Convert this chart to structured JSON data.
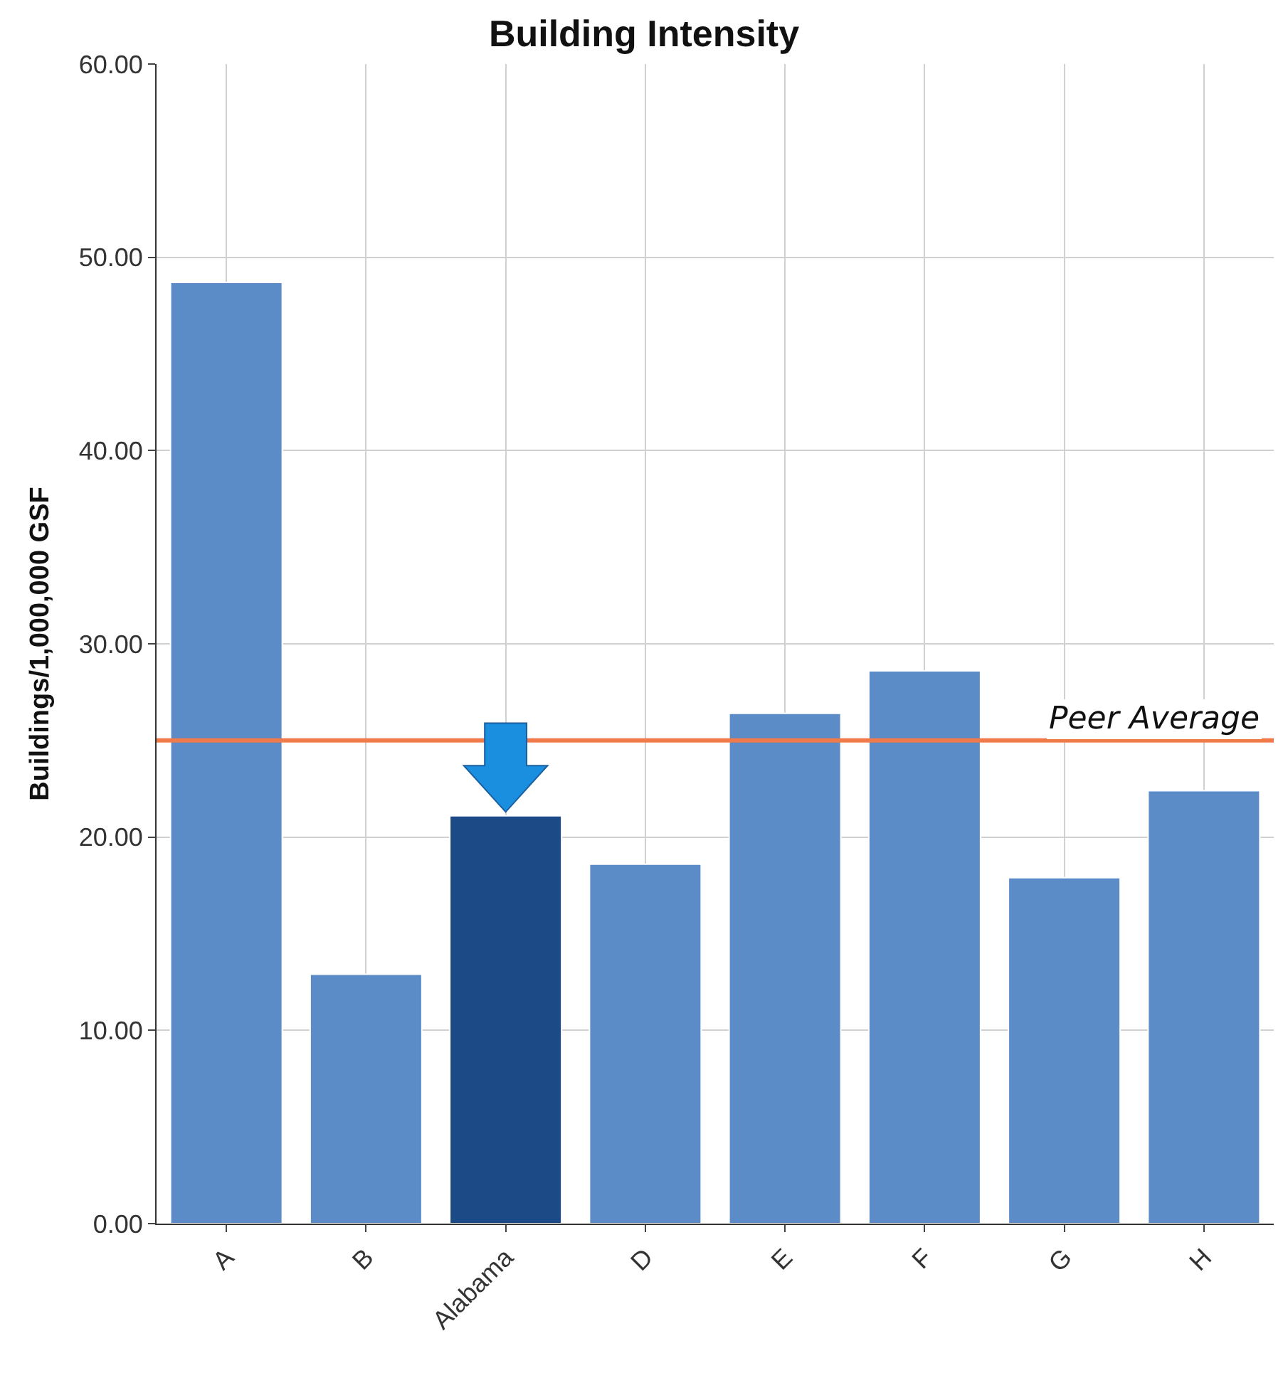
{
  "chart_data": {
    "type": "bar",
    "title": "Building Intensity",
    "ylabel": "Buildings/1,000,000 GSF",
    "categories": [
      "A",
      "B",
      "Alabama",
      "D",
      "E",
      "F",
      "G",
      "H"
    ],
    "values": [
      48.7,
      12.9,
      21.1,
      18.6,
      26.4,
      28.6,
      17.9,
      22.4
    ],
    "colors": [
      "#5b8cc8",
      "#5b8cc8",
      "#1c4a86",
      "#5b8cc8",
      "#5b8cc8",
      "#5b8cc8",
      "#5b8cc8",
      "#5b8cc8"
    ],
    "ylim": [
      0,
      60
    ],
    "yticks": [
      {
        "value": 0,
        "label": "0.00"
      },
      {
        "value": 10,
        "label": "10.00"
      },
      {
        "value": 20,
        "label": "20.00"
      },
      {
        "value": 30,
        "label": "30.00"
      },
      {
        "value": 40,
        "label": "40.00"
      },
      {
        "value": 50,
        "label": "50.00"
      },
      {
        "value": 60,
        "label": "60.00"
      }
    ],
    "grid": true,
    "ref_lines": [
      {
        "axis": "y",
        "value": 25.0,
        "label": "Peer Average",
        "color": "#f07a4a"
      }
    ]
  }
}
